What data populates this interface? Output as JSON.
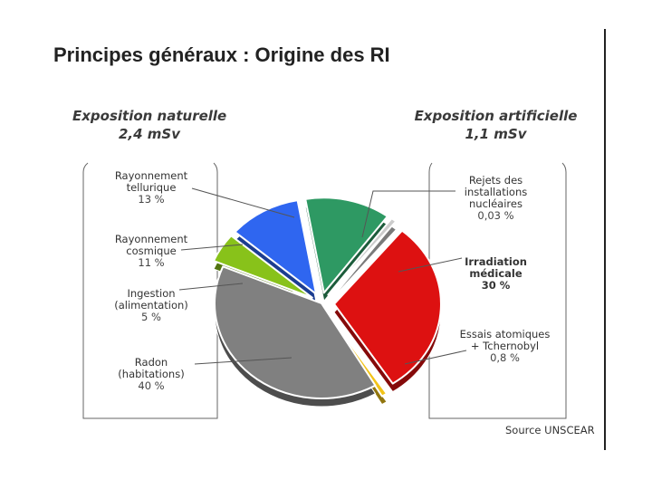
{
  "slide": {
    "title": "Principes généraux : Origine des RI",
    "source": "Source UNSCEAR"
  },
  "groups": {
    "natural": {
      "title": "Exposition naturelle",
      "dose": "2,4 mSv"
    },
    "artificial": {
      "title": "Exposition artificielle",
      "dose": "1,1 mSv"
    }
  },
  "labels": {
    "telluric": {
      "line1": "Rayonnement",
      "line2": "tellurique",
      "pct": "13 %"
    },
    "cosmic": {
      "line1": "Rayonnement",
      "line2": "cosmique",
      "pct": "11 %"
    },
    "ingestion": {
      "line1": "Ingestion",
      "line2": "(alimentation)",
      "pct": "5 %"
    },
    "radon": {
      "line1": "Radon",
      "line2": "(habitations)",
      "pct": "40 %"
    },
    "nuclear": {
      "line1": "Rejets des",
      "line2": "installations",
      "line3": "nucléaires",
      "pct": "0,03 %"
    },
    "medical": {
      "line1": "Irradiation",
      "line2": "médicale",
      "pct": "30 %"
    },
    "tests": {
      "line1": "Essais atomiques",
      "line2": "+ Tchernobyl",
      "pct": "0,8 %"
    }
  },
  "chart_data": {
    "type": "pie",
    "title": "Principes généraux : Origine des RI",
    "slices": [
      {
        "label": "Rayonnement tellurique",
        "value": 13,
        "color": "#2e9963"
      },
      {
        "label": "Rejets des installations nucléaires",
        "value": 0.03,
        "color": "#cccccc"
      },
      {
        "label": "Irradiation médicale",
        "value": 30,
        "color": "#dd1111"
      },
      {
        "label": "Essais atomiques + Tchernobyl",
        "value": 0.8,
        "color": "#f2c318"
      },
      {
        "label": "Radon (habitations)",
        "value": 40,
        "color": "#808080"
      },
      {
        "label": "Ingestion (alimentation)",
        "value": 5,
        "color": "#88c21a"
      },
      {
        "label": "Rayonnement cosmique",
        "value": 11,
        "color": "#2f66f0"
      }
    ]
  }
}
